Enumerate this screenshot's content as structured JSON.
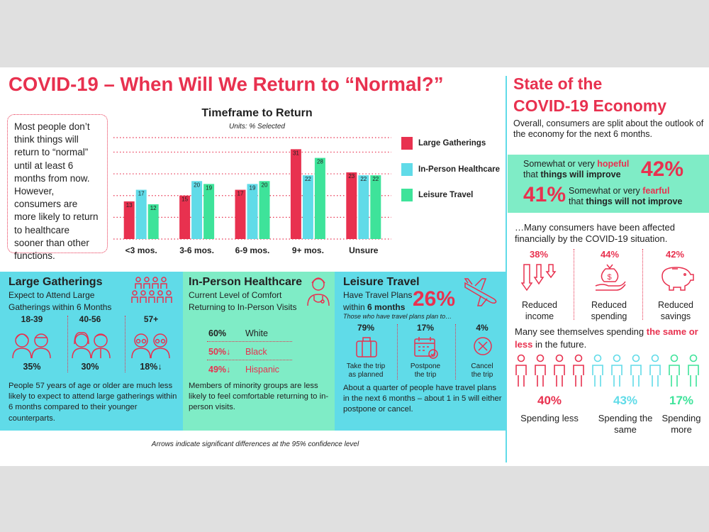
{
  "title": "COVID-19 – When Will We Return to “Normal?”",
  "intro_text": "Most people don’t think things will return to “normal” until at least 6 months from now. However, consumers are more likely to return to healthcare sooner than other functions.",
  "chart_data": {
    "type": "bar",
    "title": "Timeframe to Return",
    "subtitle": "Units: % Selected",
    "categories": [
      "<3 mos.",
      "3-6 mos.",
      "6-9 mos.",
      "9+ mos.",
      "Unsure"
    ],
    "series": [
      {
        "name": "Large Gatherings",
        "color": "#e8314f",
        "values": [
          13,
          15,
          17,
          31,
          23
        ]
      },
      {
        "name": "In-Person Healthcare",
        "color": "#60dbe8",
        "values": [
          17,
          20,
          19,
          22,
          22
        ]
      },
      {
        "name": "Leisure Travel",
        "color": "#3ee39a",
        "values": [
          12,
          19,
          20,
          28,
          22
        ]
      }
    ],
    "ylim": [
      0,
      35
    ],
    "grid": true,
    "legend_position": "right"
  },
  "large_gatherings": {
    "heading": "Large Gatherings",
    "subheading": "Expect to Attend Large Gatherings within 6 Months",
    "groups": [
      {
        "age": "18-39",
        "value": "35%"
      },
      {
        "age": "40-56",
        "value": "30%"
      },
      {
        "age": "57+",
        "value": "18%↓"
      }
    ],
    "body": "People 57 years of age or older are much less likely to expect to attend large gatherings within 6 months compared to their younger counterparts."
  },
  "healthcare": {
    "heading": "In-Person Healthcare",
    "subheading": "Current Level of Comfort Returning to In-Person Visits",
    "rows": [
      {
        "pct": "60%",
        "label": "White"
      },
      {
        "pct": "50%↓",
        "label": "Black"
      },
      {
        "pct": "49%↓",
        "label": "Hispanic"
      }
    ],
    "body": "Members of minority groups are less likely to feel comfortable returning to in-person visits."
  },
  "travel": {
    "heading": "Leisure Travel",
    "subheading_1": "Have Travel Plans",
    "subheading_2": "within",
    "subheading_3": "6 months",
    "big_pct": "26%",
    "caption": "Those who have travel plans plan to…",
    "items": [
      {
        "pct": "79%",
        "label_1": "Take the trip",
        "label_2": "as planned"
      },
      {
        "pct": "17%",
        "label_1": "Postpone",
        "label_2": "the trip"
      },
      {
        "pct": "4%",
        "label_1": "Cancel",
        "label_2": "the trip"
      }
    ],
    "body": "About a quarter of people have travel plans in the next 6 months – about 1 in 5 will either postpone or cancel."
  },
  "footnote": "Arrows indicate significant differences at the 95% confidence level",
  "economy": {
    "title_1": "State of the",
    "title_2": "COVID-19 Economy",
    "intro": "Overall, consumers are split about the outlook of the economy for the next 6 months.",
    "hopeful": {
      "pre": "Somewhat or very",
      "word": "hopeful",
      "post_1": "that",
      "post_2": "things will improve",
      "pct": "42%"
    },
    "fearful": {
      "pre": "Somewhat or very",
      "word": "fearful",
      "post_1": "that",
      "post_2": "things will not improve",
      "pct": "41%"
    },
    "financial_intro": "…Many consumers have been affected financially by the COVID-19 situation.",
    "financial": [
      {
        "pct": "38%",
        "label_1": "Reduced",
        "label_2": "income"
      },
      {
        "pct": "44%",
        "label_1": "Reduced",
        "label_2": "spending"
      },
      {
        "pct": "42%",
        "label_1": "Reduced",
        "label_2": "savings"
      }
    ],
    "spend_intro_1": "Many see themselves spending",
    "spend_intro_2": "the same or less",
    "spend_intro_3": "in the future.",
    "spending": [
      {
        "pct": "40%",
        "label_1": "Spending less",
        "label_2": "",
        "color": "#e8314f"
      },
      {
        "pct": "43%",
        "label_1": "Spending the",
        "label_2": "same",
        "color": "#60dbe8"
      },
      {
        "pct": "17%",
        "label_1": "Spending",
        "label_2": "more",
        "color": "#3ee39a"
      }
    ]
  }
}
